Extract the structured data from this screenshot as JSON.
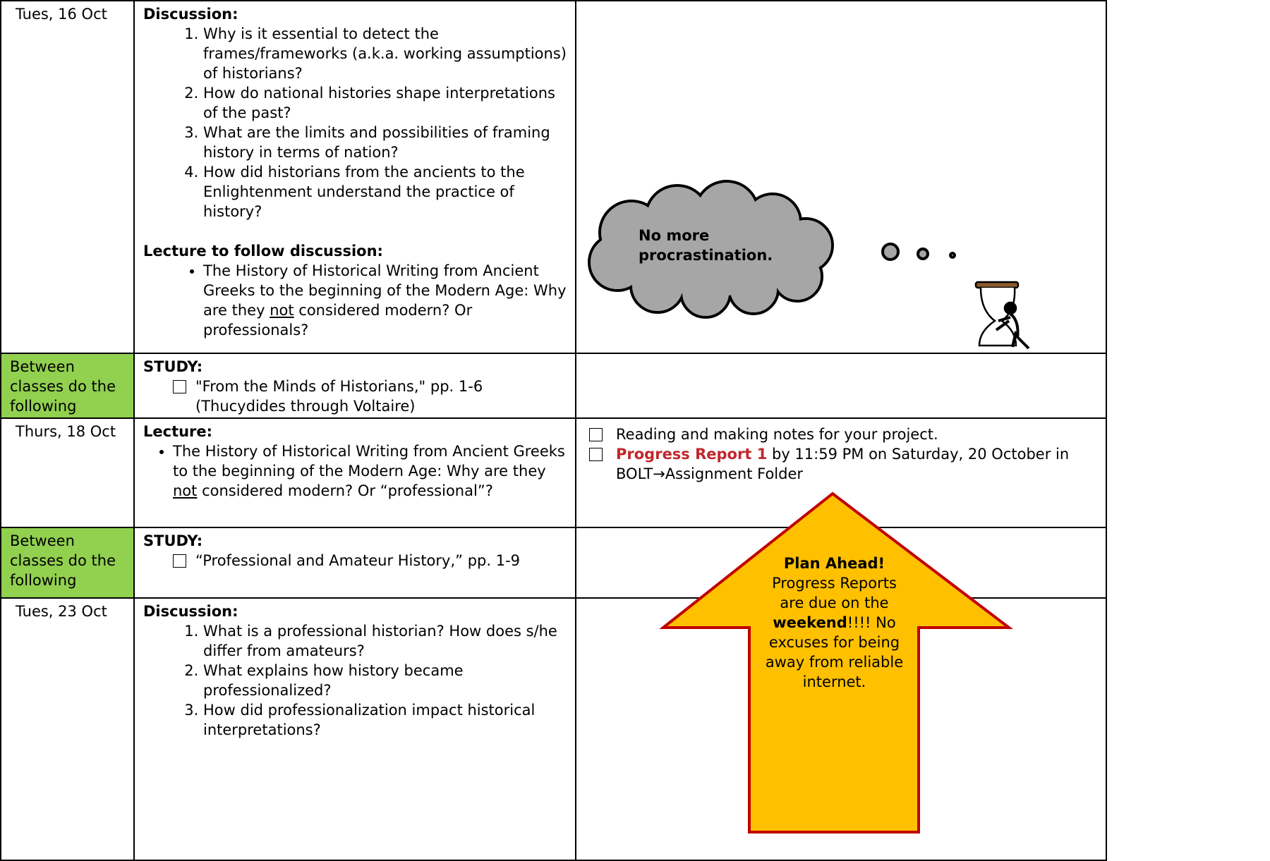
{
  "rows": [
    {
      "date": "Tues, 16 Oct",
      "sections": [
        {
          "heading": "Discussion:",
          "items": [
            "Why is it essential to detect the frames/frameworks (a.k.a. working assumptions) of historians?",
            "How do national histories shape interpretations of the past?",
            "What are the limits and possibilities of framing history in terms of nation?",
            "How did historians from the ancients to the Enlightenment understand the practice of history?"
          ]
        },
        {
          "heading": "Lecture to follow discussion:",
          "items": [
            [
              "The History of Historical Writing from Ancient Greeks to the beginning of the Modern Age: Why are they ",
              "not",
              " considered modern?  Or professionals?"
            ]
          ]
        }
      ]
    },
    {
      "date": "Between classes do the following",
      "sections": [
        {
          "heading": "STUDY:",
          "items": [
            "\"From the Minds of Historians,\" pp. 1-6 (Thucydides through Voltaire)"
          ]
        }
      ]
    },
    {
      "date": "Thurs, 18 Oct",
      "sections": [
        {
          "heading": "Lecture:",
          "items": [
            [
              "The History of Historical Writing from Ancient Greeks to the beginning of the Modern Age: Why are they ",
              "not",
              " considered modern?  Or “professional”?"
            ]
          ]
        }
      ],
      "tasks": [
        "Reading and making notes for your project.",
        [
          "Progress Report 1",
          " by 11:59 PM on Saturday, 20 October in BOLT→Assignment Folder"
        ]
      ]
    },
    {
      "date": "Between classes do the following",
      "sections": [
        {
          "heading": "STUDY:",
          "items": [
            "“Professional and Amateur History,” pp. 1-9"
          ]
        }
      ]
    },
    {
      "date": "Tues, 23 Oct",
      "sections": [
        {
          "heading": "Discussion:",
          "items": [
            "What is a professional historian?   How does s/he differ from amateurs?",
            "What explains how history became professionalized?",
            "How did professionalization impact historical interpretations?"
          ]
        }
      ]
    }
  ],
  "cloud": {
    "lines": [
      "No more",
      "procrastination."
    ]
  },
  "callout": {
    "title": "Plan Ahead!",
    "text": [
      "Progress Reports are due on the ",
      "weekend",
      "!!!! No excuses for being away from reliable internet."
    ]
  }
}
